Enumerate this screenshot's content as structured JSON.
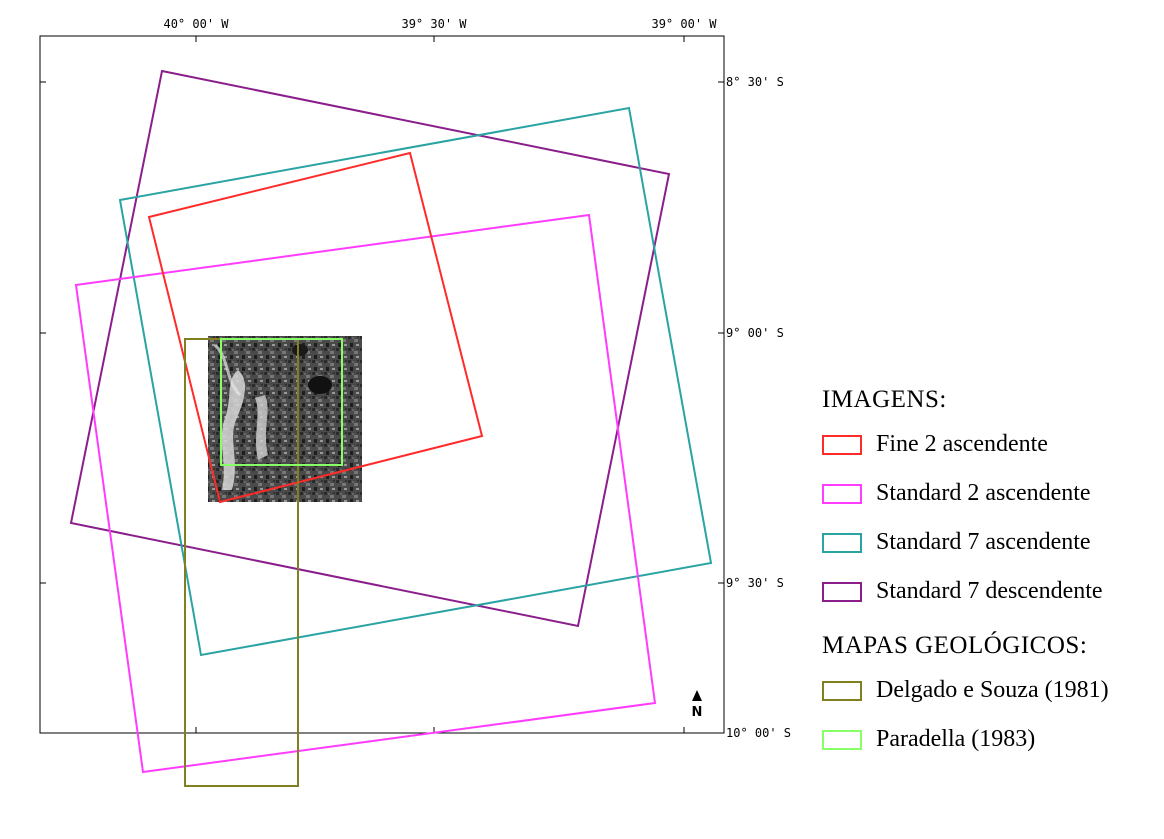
{
  "axes": {
    "top_labels": [
      "40° 00' W",
      "39° 30' W",
      "39° 00' W"
    ],
    "right_labels": [
      "8° 30' S",
      "9° 00' S",
      "9° 30' S",
      "10° 00' S"
    ]
  },
  "footprints": [
    {
      "name": "Fine 2 ascendente",
      "color": "#ff2a2a"
    },
    {
      "name": "Standard 2 ascendente",
      "color": "#ff3cff"
    },
    {
      "name": "Standard 7 ascendente",
      "color": "#2aa3a3"
    },
    {
      "name": "Standard 7 descendente",
      "color": "#8a1e8a"
    },
    {
      "name": "Delgado e Souza (1981)",
      "color": "#808020"
    },
    {
      "name": "Paradella (1983)",
      "color": "#88ff66"
    }
  ],
  "legend": {
    "heading_images": "IMAGENS:",
    "heading_maps": "MAPAS GEOLÓGICOS:",
    "items": [
      {
        "label": "Fine 2 ascendente",
        "color": "#ff2a2a"
      },
      {
        "label": "Standard 2 ascendente",
        "color": "#ff3cff"
      },
      {
        "label": "Standard 7 ascendente",
        "color": "#2aa3a3"
      },
      {
        "label": "Standard 7 descendente",
        "color": "#8a1e8a"
      },
      {
        "label": "Delgado e Souza (1981)",
        "color": "#808020"
      },
      {
        "label": "Paradella (1983)",
        "color": "#88ff66"
      }
    ]
  },
  "north_arrow": {
    "letter": "N"
  }
}
